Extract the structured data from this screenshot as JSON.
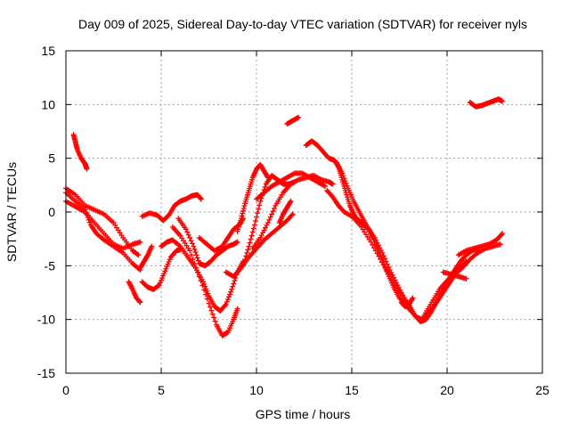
{
  "chart_data": {
    "type": "scatter",
    "title": "Day 009 of 2025, Sidereal Day-to-day VTEC variation (SDTVAR) for receiver nyls",
    "xlabel": "GPS time / hours",
    "ylabel": "SDTVAR / TECUs",
    "xlim": [
      0,
      25
    ],
    "ylim": [
      -15,
      15
    ],
    "xticks": [
      0,
      5,
      10,
      15,
      20,
      25
    ],
    "yticks": [
      -15,
      -10,
      -5,
      0,
      5,
      10,
      15
    ],
    "grid": true,
    "marker": "+",
    "color": "#ff0000",
    "series": [
      {
        "points": [
          [
            0.4,
            7.2
          ],
          [
            0.5,
            6.5
          ],
          [
            0.6,
            5.8
          ],
          [
            0.8,
            5.0
          ],
          [
            1.0,
            4.5
          ],
          [
            1.1,
            4.0
          ]
        ]
      },
      {
        "points": [
          [
            0.0,
            2.2
          ],
          [
            0.5,
            1.6
          ],
          [
            1.0,
            0.6
          ],
          [
            1.5,
            0.2
          ],
          [
            2.0,
            -0.2
          ],
          [
            2.5,
            -1.0
          ],
          [
            3.0,
            -2.4
          ],
          [
            3.5,
            -3.6
          ],
          [
            3.8,
            -4.0
          ]
        ]
      },
      {
        "points": [
          [
            0.0,
            1.8
          ],
          [
            0.5,
            1.0
          ],
          [
            1.0,
            0.2
          ],
          [
            1.3,
            -1.2
          ],
          [
            1.6,
            -2.0
          ],
          [
            2.0,
            -2.6
          ],
          [
            2.5,
            -3.2
          ],
          [
            3.0,
            -3.8
          ],
          [
            3.5,
            -4.8
          ],
          [
            3.9,
            -5.4
          ]
        ]
      },
      {
        "points": [
          [
            0.0,
            1.0
          ],
          [
            0.5,
            0.5
          ],
          [
            1.0,
            0.0
          ],
          [
            1.5,
            -1.0
          ],
          [
            2.0,
            -2.0
          ],
          [
            2.5,
            -3.0
          ],
          [
            3.0,
            -3.4
          ],
          [
            3.5,
            -3.0
          ],
          [
            3.9,
            -2.8
          ]
        ]
      },
      {
        "points": [
          [
            3.3,
            -6.5
          ],
          [
            3.5,
            -7.2
          ],
          [
            3.7,
            -8.0
          ],
          [
            3.9,
            -8.4
          ]
        ]
      },
      {
        "points": [
          [
            4.0,
            -6.5
          ],
          [
            4.3,
            -7.0
          ],
          [
            4.6,
            -7.2
          ],
          [
            4.9,
            -6.8
          ],
          [
            5.2,
            -5.5
          ],
          [
            5.5,
            -4.2
          ],
          [
            5.8,
            -3.6
          ],
          [
            6.0,
            -3.5
          ]
        ]
      },
      {
        "points": [
          [
            3.9,
            -5.2
          ],
          [
            4.1,
            -4.6
          ],
          [
            4.3,
            -4.0
          ],
          [
            4.5,
            -3.2
          ]
        ]
      },
      {
        "points": [
          [
            4.0,
            -0.4
          ],
          [
            4.4,
            -0.1
          ],
          [
            4.8,
            -0.3
          ],
          [
            5.1,
            -0.8
          ],
          [
            5.4,
            -0.3
          ],
          [
            5.7,
            0.6
          ],
          [
            6.0,
            1.0
          ],
          [
            6.3,
            1.2
          ],
          [
            6.6,
            1.5
          ],
          [
            6.9,
            1.6
          ],
          [
            7.1,
            1.2
          ]
        ]
      },
      {
        "points": [
          [
            5.0,
            -3.2
          ],
          [
            5.3,
            -2.8
          ],
          [
            5.6,
            -2.6
          ],
          [
            6.0,
            -3.2
          ],
          [
            6.4,
            -4.2
          ],
          [
            6.8,
            -5.2
          ],
          [
            7.2,
            -6.5
          ],
          [
            7.5,
            -7.8
          ],
          [
            7.8,
            -8.8
          ],
          [
            8.1,
            -9.2
          ],
          [
            8.4,
            -8.6
          ],
          [
            8.7,
            -7.2
          ],
          [
            9.0,
            -5.6
          ],
          [
            9.3,
            -4.6
          ]
        ]
      },
      {
        "points": [
          [
            5.6,
            -1.4
          ],
          [
            6.0,
            -2.2
          ],
          [
            6.5,
            -3.6
          ],
          [
            7.0,
            -6.0
          ],
          [
            7.5,
            -8.5
          ],
          [
            7.9,
            -10.5
          ],
          [
            8.2,
            -11.5
          ],
          [
            8.5,
            -11.2
          ],
          [
            8.8,
            -10.0
          ],
          [
            9.0,
            -9.0
          ]
        ]
      },
      {
        "points": [
          [
            5.9,
            -0.6
          ],
          [
            6.3,
            -1.6
          ],
          [
            6.7,
            -3.2
          ],
          [
            7.0,
            -4.8
          ],
          [
            7.3,
            -5.0
          ],
          [
            7.6,
            -4.6
          ],
          [
            7.9,
            -4.0
          ],
          [
            8.2,
            -3.6
          ],
          [
            8.5,
            -3.2
          ],
          [
            8.8,
            -3.0
          ],
          [
            9.0,
            -2.8
          ]
        ]
      },
      {
        "points": [
          [
            7.0,
            -2.4
          ],
          [
            7.4,
            -3.0
          ],
          [
            7.8,
            -3.6
          ],
          [
            8.2,
            -3.2
          ],
          [
            8.5,
            -2.4
          ],
          [
            8.8,
            -1.6
          ],
          [
            9.1,
            -1.2
          ],
          [
            9.3,
            -0.6
          ]
        ]
      },
      {
        "points": [
          [
            8.4,
            -5.6
          ],
          [
            8.8,
            -6.0
          ],
          [
            9.2,
            -5.2
          ],
          [
            9.6,
            -4.2
          ],
          [
            10.0,
            -3.4
          ],
          [
            10.4,
            -2.6
          ],
          [
            10.8,
            -2.0
          ],
          [
            11.2,
            -1.4
          ],
          [
            11.6,
            -0.8
          ],
          [
            11.9,
            -0.2
          ]
        ]
      },
      {
        "points": [
          [
            9.3,
            -5.0
          ],
          [
            9.6,
            -3.2
          ],
          [
            9.9,
            -1.2
          ],
          [
            10.2,
            1.0
          ],
          [
            10.5,
            2.6
          ],
          [
            10.8,
            3.4
          ],
          [
            11.1,
            3.0
          ],
          [
            11.4,
            2.6
          ],
          [
            11.7,
            2.6
          ],
          [
            12.0,
            2.8
          ]
        ]
      },
      {
        "points": [
          [
            9.0,
            -1.8
          ],
          [
            9.2,
            -0.6
          ],
          [
            9.4,
            0.8
          ],
          [
            9.6,
            2.0
          ],
          [
            9.8,
            3.2
          ],
          [
            10.0,
            4.0
          ],
          [
            10.2,
            4.4
          ],
          [
            10.4,
            3.8
          ],
          [
            10.6,
            3.2
          ]
        ]
      },
      {
        "points": [
          [
            9.8,
            -3.4
          ],
          [
            10.2,
            -2.4
          ],
          [
            10.6,
            -1.0
          ],
          [
            11.0,
            0.6
          ],
          [
            11.4,
            1.8
          ],
          [
            11.8,
            2.6
          ],
          [
            12.2,
            3.0
          ],
          [
            12.6,
            3.2
          ],
          [
            13.0,
            3.4
          ],
          [
            13.4,
            3.0
          ],
          [
            13.8,
            2.8
          ],
          [
            14.0,
            2.6
          ]
        ]
      },
      {
        "points": [
          [
            10.0,
            1.2
          ],
          [
            10.4,
            1.8
          ],
          [
            10.8,
            2.4
          ],
          [
            11.2,
            2.8
          ],
          [
            11.6,
            3.2
          ],
          [
            12.0,
            3.6
          ],
          [
            12.4,
            3.6
          ],
          [
            12.8,
            3.2
          ],
          [
            13.2,
            2.8
          ],
          [
            13.6,
            2.4
          ]
        ]
      },
      {
        "points": [
          [
            11.2,
            -1.0
          ],
          [
            11.4,
            -0.2
          ],
          [
            11.6,
            0.4
          ],
          [
            11.8,
            1.0
          ]
        ]
      },
      {
        "points": [
          [
            11.6,
            8.2
          ],
          [
            11.9,
            8.5
          ],
          [
            12.2,
            8.8
          ]
        ]
      },
      {
        "points": [
          [
            12.6,
            6.2
          ],
          [
            12.9,
            6.6
          ],
          [
            13.2,
            6.2
          ],
          [
            13.5,
            5.6
          ],
          [
            13.8,
            5.0
          ],
          [
            14.1,
            4.8
          ],
          [
            14.3,
            4.2
          ],
          [
            14.5,
            3.0
          ],
          [
            14.7,
            1.8
          ],
          [
            14.9,
            0.6
          ],
          [
            15.1,
            -0.2
          ],
          [
            15.3,
            -0.8
          ],
          [
            15.6,
            -1.2
          ],
          [
            15.9,
            -1.6
          ],
          [
            16.2,
            -2.6
          ]
        ]
      },
      {
        "points": [
          [
            13.7,
            2.0
          ],
          [
            14.0,
            1.4
          ],
          [
            14.3,
            0.6
          ],
          [
            14.6,
            0.0
          ],
          [
            15.0,
            -0.4
          ],
          [
            15.4,
            -0.8
          ],
          [
            15.8,
            -1.4
          ],
          [
            16.2,
            -2.4
          ],
          [
            16.6,
            -3.8
          ],
          [
            17.0,
            -5.4
          ],
          [
            17.4,
            -6.8
          ],
          [
            17.8,
            -8.2
          ],
          [
            18.1,
            -9.2
          ],
          [
            18.4,
            -9.8
          ],
          [
            18.7,
            -10.0
          ],
          [
            19.0,
            -9.4
          ],
          [
            19.3,
            -8.8
          ],
          [
            19.6,
            -8.0
          ],
          [
            19.9,
            -7.2
          ],
          [
            20.2,
            -6.4
          ],
          [
            20.5,
            -5.6
          ],
          [
            20.8,
            -5.0
          ],
          [
            21.0,
            -4.6
          ]
        ]
      },
      {
        "points": [
          [
            14.2,
            4.6
          ],
          [
            14.5,
            3.6
          ],
          [
            14.8,
            2.2
          ],
          [
            15.1,
            1.0
          ],
          [
            15.4,
            0.0
          ],
          [
            15.7,
            -1.0
          ],
          [
            16.0,
            -2.0
          ],
          [
            16.3,
            -3.2
          ],
          [
            16.6,
            -4.4
          ],
          [
            16.9,
            -5.8
          ],
          [
            17.2,
            -7.0
          ],
          [
            17.5,
            -8.0
          ],
          [
            17.8,
            -8.6
          ],
          [
            18.1,
            -9.2
          ]
        ]
      },
      {
        "points": [
          [
            15.0,
            -0.4
          ],
          [
            15.5,
            -1.4
          ],
          [
            16.0,
            -2.8
          ],
          [
            16.5,
            -4.4
          ],
          [
            17.0,
            -6.0
          ],
          [
            17.5,
            -7.4
          ],
          [
            18.0,
            -8.6
          ],
          [
            18.3,
            -9.6
          ],
          [
            18.6,
            -10.2
          ],
          [
            18.9,
            -10.0
          ],
          [
            19.2,
            -9.2
          ],
          [
            19.5,
            -8.2
          ],
          [
            19.8,
            -7.2
          ],
          [
            20.1,
            -6.2
          ],
          [
            20.4,
            -5.4
          ],
          [
            20.7,
            -4.6
          ],
          [
            21.0,
            -4.0
          ],
          [
            21.3,
            -3.6
          ],
          [
            21.6,
            -3.4
          ]
        ]
      },
      {
        "points": [
          [
            17.6,
            -8.4
          ],
          [
            17.8,
            -8.8
          ],
          [
            18.0,
            -8.6
          ],
          [
            18.2,
            -8.0
          ]
        ]
      },
      {
        "points": [
          [
            18.8,
            -9.6
          ],
          [
            19.2,
            -8.4
          ],
          [
            19.6,
            -7.2
          ],
          [
            20.0,
            -6.4
          ],
          [
            20.4,
            -5.8
          ],
          [
            20.8,
            -5.2
          ],
          [
            21.2,
            -4.4
          ],
          [
            21.6,
            -3.8
          ],
          [
            22.0,
            -3.4
          ],
          [
            22.4,
            -3.2
          ],
          [
            22.8,
            -3.0
          ]
        ]
      },
      {
        "points": [
          [
            19.8,
            -5.6
          ],
          [
            20.2,
            -5.8
          ],
          [
            20.6,
            -6.0
          ],
          [
            21.0,
            -6.2
          ]
        ]
      },
      {
        "points": [
          [
            20.6,
            -4.0
          ],
          [
            21.0,
            -3.6
          ],
          [
            21.4,
            -3.4
          ],
          [
            21.8,
            -3.2
          ],
          [
            22.2,
            -3.0
          ],
          [
            22.6,
            -2.6
          ],
          [
            22.9,
            -2.0
          ]
        ]
      },
      {
        "points": [
          [
            21.2,
            10.2
          ],
          [
            21.5,
            9.8
          ],
          [
            21.8,
            9.9
          ],
          [
            22.1,
            10.1
          ],
          [
            22.4,
            10.3
          ],
          [
            22.7,
            10.5
          ],
          [
            22.9,
            10.3
          ]
        ]
      }
    ]
  }
}
